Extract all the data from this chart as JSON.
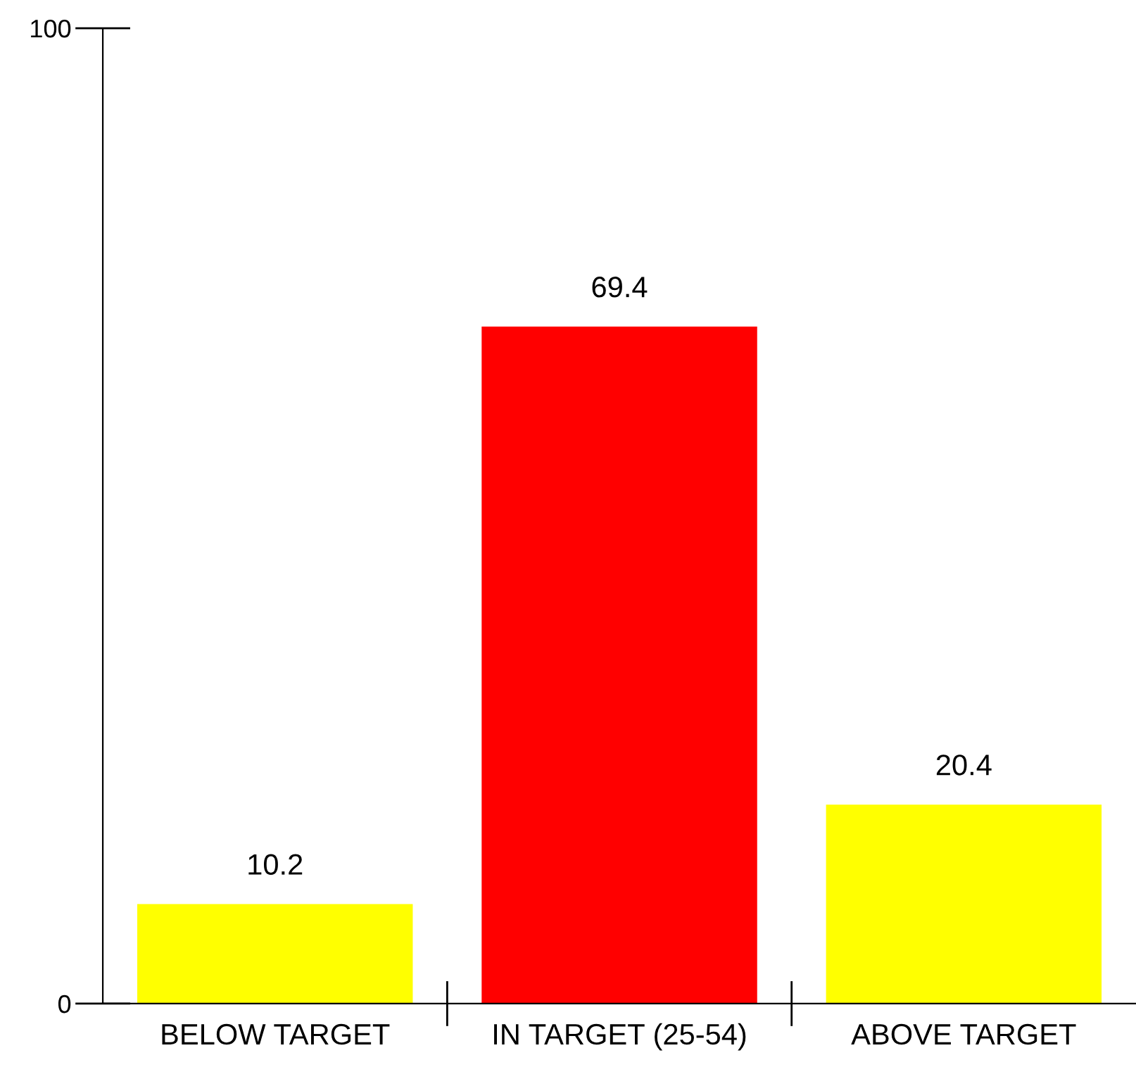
{
  "chart_data": {
    "type": "bar",
    "categories": [
      "BELOW TARGET",
      "IN TARGET (25-54)",
      "ABOVE TARGET"
    ],
    "values": [
      10.2,
      69.4,
      20.4
    ],
    "colors": [
      "#ffff00",
      "#ff0000",
      "#ffff00"
    ],
    "ylim": [
      0,
      100
    ],
    "yticks": [
      0,
      100
    ],
    "data_labels": true,
    "grid": false
  }
}
